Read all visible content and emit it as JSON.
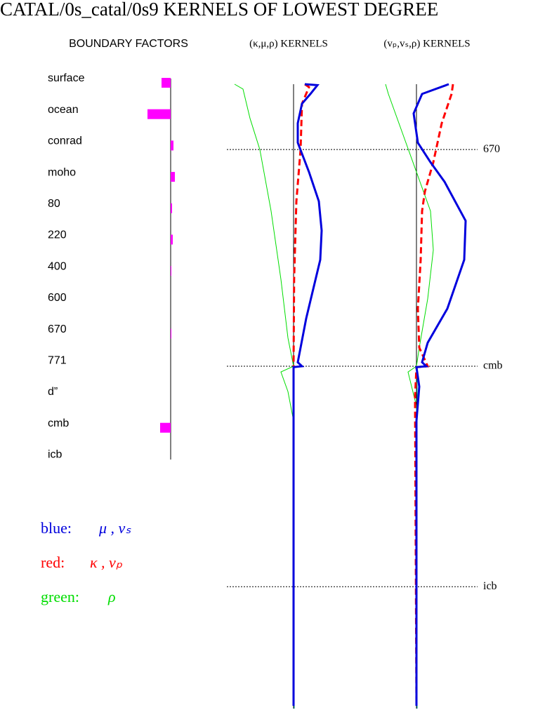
{
  "title": "CATAL/0s_catal/0s9 KERNELS OF LOWEST DEGREE",
  "boundary_factors": {
    "title": "BOUNDARY FACTORS",
    "color": "#ff00ff",
    "categories": [
      "surface",
      "ocean",
      "conrad",
      "moho",
      "80",
      "220",
      "400",
      "600",
      "670",
      "771",
      "d”",
      "cmb",
      "icb"
    ],
    "values": [
      -1.3,
      -3.3,
      0.4,
      0.6,
      0.2,
      0.3,
      0.1,
      0,
      0.1,
      0,
      0,
      -1.5,
      0
    ]
  },
  "ylim": [
    0,
    6371
  ],
  "depth_markers": [
    {
      "label": "670",
      "depth": 670
    },
    {
      "label": "cmb",
      "depth": 2891
    },
    {
      "label": "icb",
      "depth": 5150
    }
  ],
  "kernel_panels": [
    {
      "title": "(κ,μ,ρ)  KERNELS",
      "curves": [
        {
          "color": "#00dd00",
          "width": 1,
          "dash": false,
          "depth": [
            0,
            50,
            350,
            670,
            1300,
            2000,
            2600,
            2891,
            2950,
            3150,
            3450,
            6371
          ],
          "values": [
            -2.1,
            -1.8,
            -1.55,
            -1.2,
            -0.8,
            -0.45,
            -0.2,
            0,
            -0.45,
            -0.2,
            0,
            0
          ]
        },
        {
          "color": "#ff0000",
          "width": 3,
          "dash": true,
          "depth": [
            0,
            30,
            200,
            670,
            1200,
            2000,
            2891,
            3000,
            6371
          ],
          "values": [
            0.4,
            0.55,
            0.3,
            0.25,
            0.1,
            0.02,
            0,
            0,
            0
          ]
        },
        {
          "color": "#0000dd",
          "width": 3,
          "dash": false,
          "depth": [
            0,
            10,
            100,
            200,
            400,
            600,
            900,
            1200,
            1500,
            1800,
            2100,
            2400,
            2700,
            2850,
            2891,
            2900,
            6371
          ],
          "values": [
            0.4,
            0.85,
            0.6,
            0.3,
            0.15,
            0.15,
            0.55,
            0.9,
            1.0,
            0.95,
            0.7,
            0.45,
            0.25,
            0.15,
            0.3,
            0,
            0
          ]
        }
      ]
    },
    {
      "title": "(vₚ,vₛ,ρ)  KERNELS",
      "curves": [
        {
          "color": "#00dd00",
          "width": 1,
          "dash": false,
          "depth": [
            0,
            100,
            500,
            900,
            1300,
            1700,
            2200,
            2700,
            2891,
            2950,
            3300,
            6371
          ],
          "values": [
            -1.1,
            -1.0,
            -0.5,
            0,
            0.5,
            0.6,
            0.4,
            0.1,
            0,
            -0.3,
            0,
            0
          ]
        },
        {
          "color": "#ff0000",
          "width": 3,
          "dash": true,
          "depth": [
            0,
            100,
            400,
            800,
            1100,
            1300,
            1800,
            2300,
            2700,
            2891,
            2900,
            3200,
            6371
          ],
          "values": [
            1.3,
            1.25,
            0.9,
            0.6,
            0.3,
            0.2,
            0.15,
            0.05,
            0.1,
            0.4,
            0,
            -0.05,
            0
          ]
        },
        {
          "color": "#0000dd",
          "width": 3,
          "dash": false,
          "depth": [
            0,
            100,
            300,
            600,
            800,
            1000,
            1400,
            1800,
            2300,
            2650,
            2850,
            2891,
            2900,
            3100,
            3450,
            6371
          ],
          "values": [
            1.15,
            0.2,
            -0.1,
            0.05,
            0.5,
            1.0,
            1.75,
            1.7,
            1.1,
            0.4,
            0.2,
            0.35,
            0,
            0.1,
            0,
            0
          ]
        }
      ]
    }
  ],
  "legend": [
    {
      "name": "blue:",
      "symbols": "μ , vₛ",
      "color": "#0000dd"
    },
    {
      "name": "red:",
      "symbols": "κ , vₚ",
      "color": "#ff0000"
    },
    {
      "name": "green:",
      "symbols": "ρ",
      "color": "#00dd00"
    }
  ]
}
